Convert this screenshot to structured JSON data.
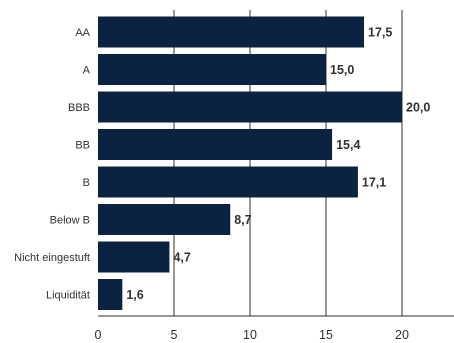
{
  "chart_data": {
    "type": "bar",
    "orientation": "horizontal",
    "categories": [
      "AA",
      "A",
      "BBB",
      "BB",
      "B",
      "Below B",
      "Nicht eingestuft",
      "Liquidität"
    ],
    "values": [
      17.5,
      15.0,
      20.0,
      15.4,
      17.1,
      8.7,
      4.7,
      1.6
    ],
    "value_labels": [
      "17,5",
      "15,0",
      "20,0",
      "15,4",
      "17,1",
      "8,7",
      "4,7",
      "1,6"
    ],
    "x_ticks": [
      0,
      5,
      10,
      15,
      20
    ],
    "xlim": [
      0,
      23.5
    ],
    "title": "",
    "xlabel": "",
    "ylabel": "",
    "grid": "vertical",
    "legend": "none",
    "colors": {
      "bar": "#0b2340",
      "grid": "#333333",
      "text": "#333333"
    }
  }
}
